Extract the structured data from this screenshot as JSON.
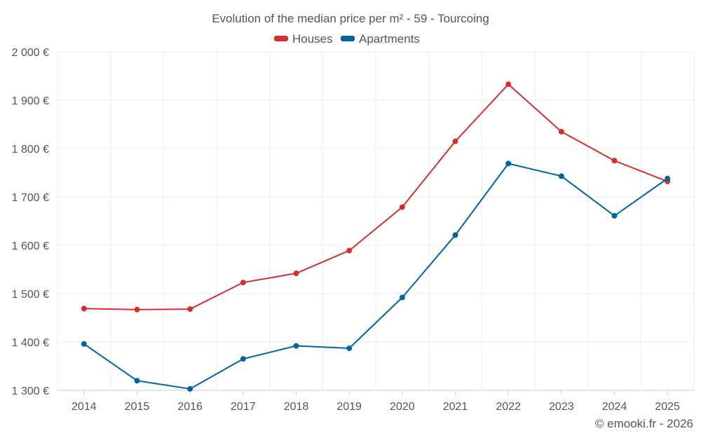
{
  "chart_data": {
    "type": "line",
    "title": "Evolution of the median price per m² - 59 - Tourcoing",
    "categories": [
      "2014",
      "2015",
      "2016",
      "2017",
      "2018",
      "2019",
      "2020",
      "2021",
      "2022",
      "2023",
      "2024",
      "2025"
    ],
    "series": [
      {
        "name": "Houses",
        "color": "#d32f2f",
        "values": [
          1469,
          1467,
          1468,
          1523,
          1542,
          1589,
          1679,
          1815,
          1933,
          1835,
          1775,
          1732
        ]
      },
      {
        "name": "Apartments",
        "color": "#01649c",
        "values": [
          1396,
          1320,
          1303,
          1365,
          1392,
          1387,
          1492,
          1621,
          1769,
          1743,
          1661,
          1738
        ]
      }
    ],
    "ylim": [
      1300,
      2000
    ],
    "yticks": [
      1300,
      1400,
      1500,
      1600,
      1700,
      1800,
      1900,
      2000
    ],
    "ytick_labels": [
      "1 300 €",
      "1 400 €",
      "1 500 €",
      "1 600 €",
      "1 700 €",
      "1 800 €",
      "1 900 €",
      "2 000 €"
    ],
    "xlabel": "",
    "ylabel": "",
    "grid": true,
    "legend_position": "top-center"
  },
  "credit": "© emooki.fr - 2026"
}
